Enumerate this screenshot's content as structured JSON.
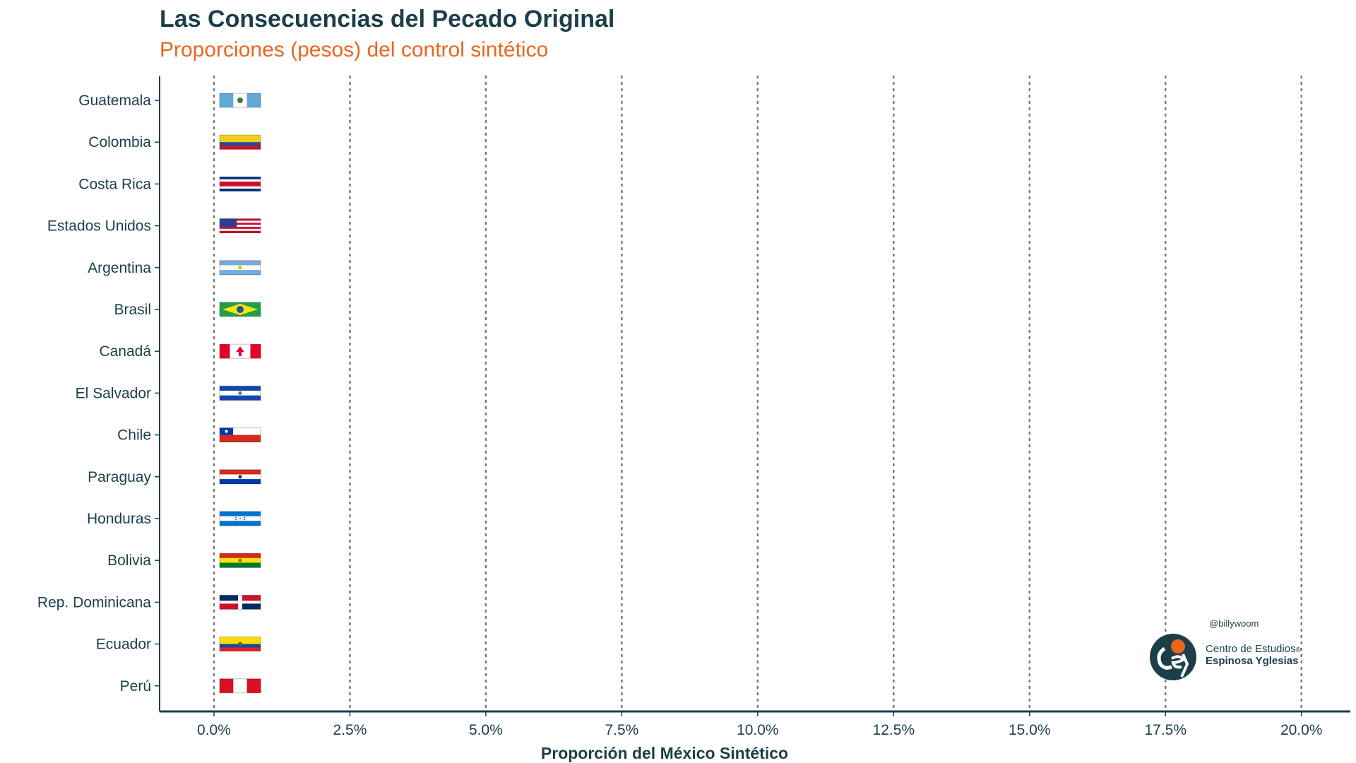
{
  "chart_data": {
    "type": "bar",
    "title": "Las Consecuencias del Pecado Original",
    "subtitle": "Proporciones (pesos) del control sintético",
    "xlabel": "Proporción del México Sintético",
    "ylabel": "",
    "xlim": [
      -0.01,
      0.209
    ],
    "xticks": [
      0,
      0.025,
      0.05,
      0.075,
      0.1,
      0.125,
      0.15,
      0.175,
      0.2
    ],
    "xtick_labels": [
      "0.0%",
      "2.5%",
      "5.0%",
      "7.5%",
      "10.0%",
      "12.5%",
      "15.0%",
      "17.5%",
      "20.0%"
    ],
    "categories": [
      "Guatemala",
      "Colombia",
      "Costa Rica",
      "Estados Unidos",
      "Argentina",
      "Brasil",
      "Canadá",
      "El Salvador",
      "Chile",
      "Paraguay",
      "Honduras",
      "Bolivia",
      "Rep. Dominicana",
      "Ecuador",
      "Perú"
    ],
    "values": [
      0,
      0,
      0,
      0,
      0,
      0,
      0,
      0,
      0,
      0,
      0,
      0,
      0,
      0,
      0
    ],
    "flags": [
      "flag-guatemala",
      "flag-colombia",
      "flag-costa-rica",
      "flag-usa",
      "flag-argentina",
      "flag-brazil",
      "flag-canada",
      "flag-el-salvador",
      "flag-chile",
      "flag-paraguay",
      "flag-honduras",
      "flag-bolivia",
      "flag-dominican-republic",
      "flag-ecuador",
      "flag-peru"
    ],
    "grid": "vertical dotted",
    "colors": {
      "text": "#1b3f4a",
      "subtitle": "#e8671e",
      "grid": "#777777"
    }
  },
  "logo": {
    "handle": "@billywoom",
    "line1": "Centro de Estudios",
    "line2": "Espinosa Yglesias",
    "registered": "®",
    "mark_letters": "cee"
  }
}
